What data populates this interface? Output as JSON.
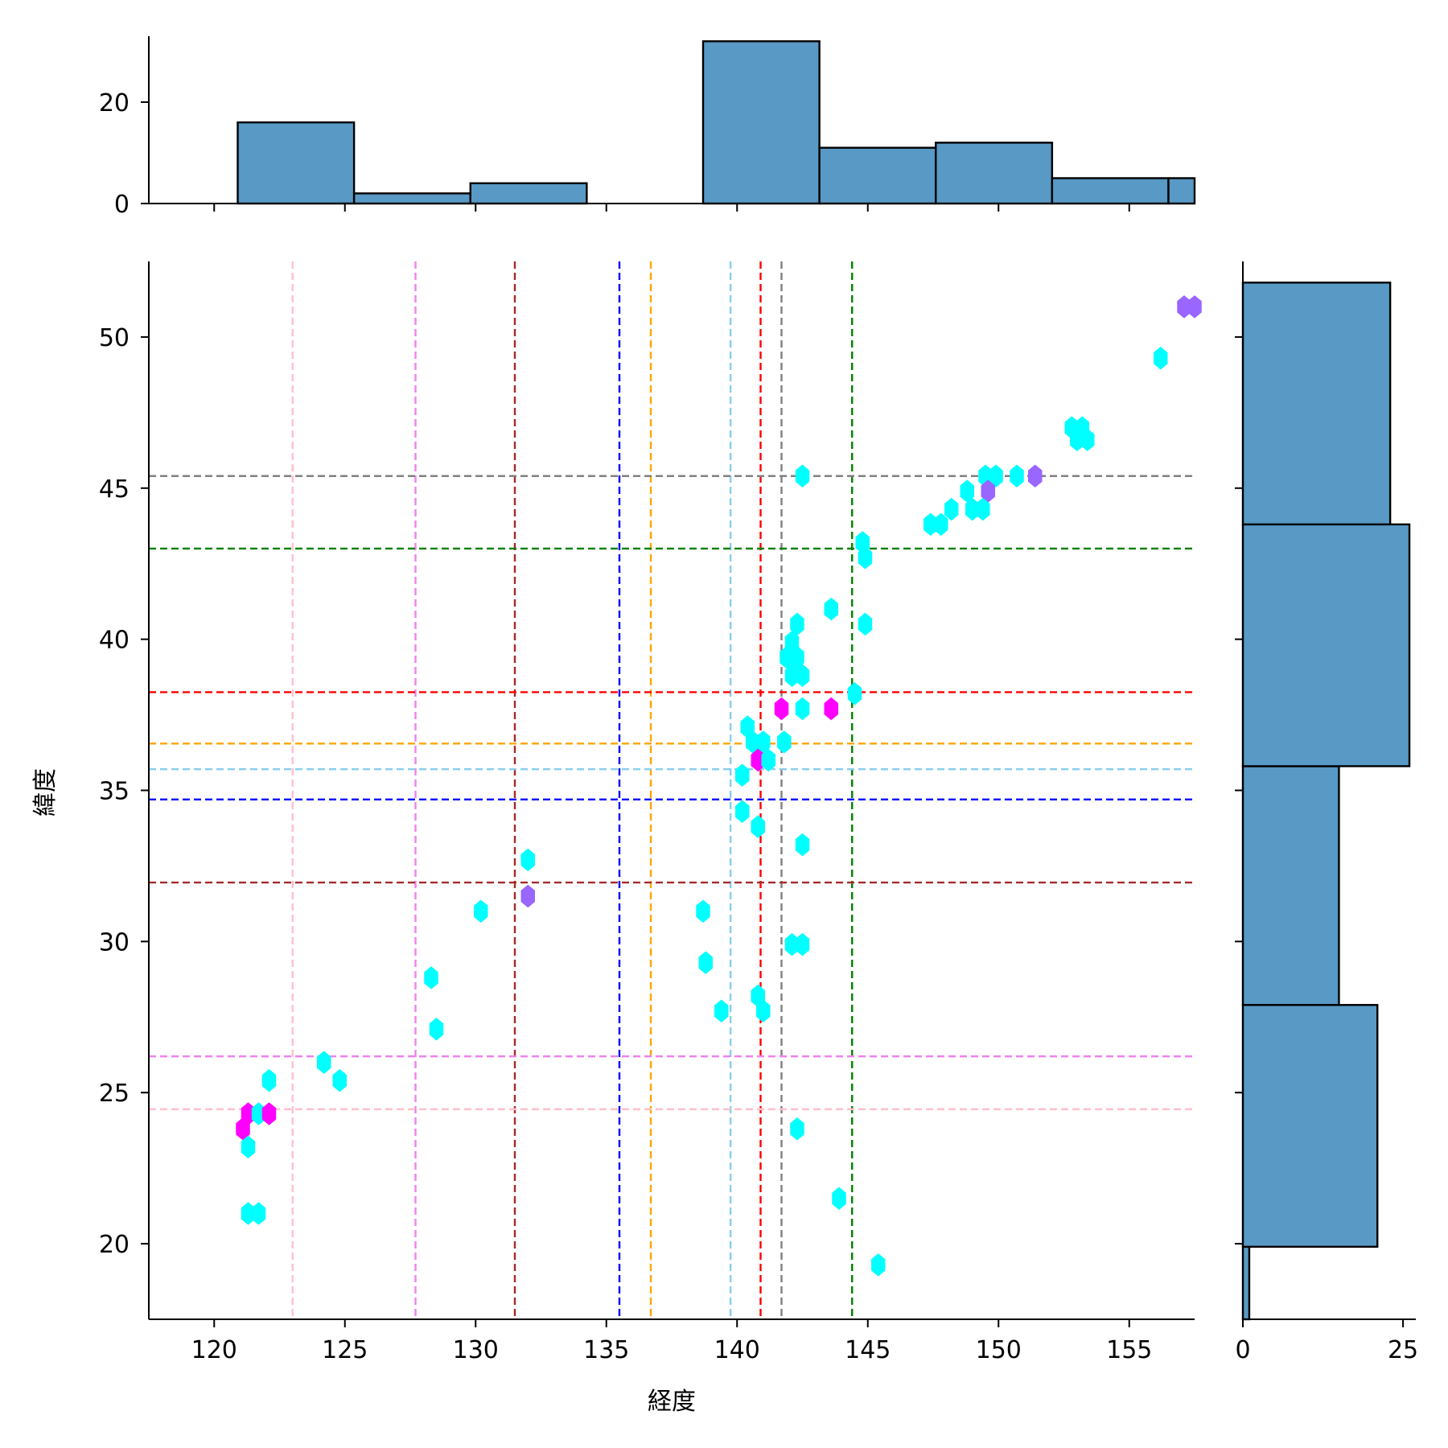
{
  "chart_data": {
    "type": "hexbin-joint",
    "xlabel": "経度",
    "ylabel": "緯度",
    "xlim": [
      117.5,
      157.5
    ],
    "ylim": [
      17.5,
      52.5
    ],
    "x_ticks": [
      120,
      125,
      130,
      135,
      140,
      145,
      150,
      155
    ],
    "y_ticks": [
      20,
      25,
      30,
      35,
      40,
      45,
      50
    ],
    "marginal_x": {
      "bin_edges": [
        120.9,
        125.35,
        129.8,
        134.25,
        138.7,
        143.15,
        147.6,
        152.05,
        156.5,
        160.95
      ],
      "counts": [
        16,
        2,
        4,
        0,
        32,
        11,
        12,
        5,
        5
      ],
      "ylim": [
        0,
        33
      ],
      "ticks": [
        0,
        20
      ]
    },
    "marginal_y": {
      "bin_edges": [
        17.5,
        19.9,
        27.9,
        35.8,
        43.8,
        51.8
      ],
      "counts": [
        1,
        21,
        15,
        26,
        23
      ],
      "xlim": [
        0,
        27
      ],
      "ticks": [
        0,
        25
      ]
    },
    "vlines": [
      {
        "x": 123.0,
        "color": "#ffc0cb"
      },
      {
        "x": 127.7,
        "color": "#ee82ee"
      },
      {
        "x": 131.5,
        "color": "#a52a2a"
      },
      {
        "x": 135.5,
        "color": "#0000ff"
      },
      {
        "x": 136.7,
        "color": "#ffa500"
      },
      {
        "x": 139.75,
        "color": "#87ceeb"
      },
      {
        "x": 140.9,
        "color": "#ff0000"
      },
      {
        "x": 141.7,
        "color": "#808080"
      },
      {
        "x": 144.4,
        "color": "#008000"
      }
    ],
    "hlines": [
      {
        "y": 45.4,
        "color": "#808080"
      },
      {
        "y": 43.0,
        "color": "#008000"
      },
      {
        "y": 38.25,
        "color": "#ff0000"
      },
      {
        "y": 36.55,
        "color": "#ffa500"
      },
      {
        "y": 35.7,
        "color": "#87ceeb"
      },
      {
        "y": 34.7,
        "color": "#0000ff"
      },
      {
        "y": 31.95,
        "color": "#a52a2a"
      },
      {
        "y": 26.2,
        "color": "#ee82ee"
      },
      {
        "y": 24.45,
        "color": "#ffc0cb"
      }
    ],
    "hex_points": [
      {
        "x": 157.1,
        "y": 51.0,
        "c": "#9966ff"
      },
      {
        "x": 157.5,
        "y": 51.0,
        "c": "#9966ff"
      },
      {
        "x": 156.2,
        "y": 49.3,
        "c": "#00ffff"
      },
      {
        "x": 152.8,
        "y": 47.0,
        "c": "#00ffff"
      },
      {
        "x": 153.2,
        "y": 47.0,
        "c": "#00ffff"
      },
      {
        "x": 153.0,
        "y": 46.6,
        "c": "#00ffff"
      },
      {
        "x": 153.4,
        "y": 46.6,
        "c": "#00ffff"
      },
      {
        "x": 142.5,
        "y": 45.4,
        "c": "#00ffff"
      },
      {
        "x": 149.5,
        "y": 45.4,
        "c": "#00ffff"
      },
      {
        "x": 149.9,
        "y": 45.4,
        "c": "#00ffff"
      },
      {
        "x": 150.7,
        "y": 45.4,
        "c": "#00ffff"
      },
      {
        "x": 151.4,
        "y": 45.4,
        "c": "#9966ff"
      },
      {
        "x": 149.6,
        "y": 44.9,
        "c": "#9966ff"
      },
      {
        "x": 148.8,
        "y": 44.9,
        "c": "#00ffff"
      },
      {
        "x": 148.2,
        "y": 44.3,
        "c": "#00ffff"
      },
      {
        "x": 149.0,
        "y": 44.3,
        "c": "#00ffff"
      },
      {
        "x": 149.4,
        "y": 44.3,
        "c": "#00ffff"
      },
      {
        "x": 147.8,
        "y": 43.8,
        "c": "#00ffff"
      },
      {
        "x": 147.4,
        "y": 43.8,
        "c": "#00ffff"
      },
      {
        "x": 144.8,
        "y": 43.2,
        "c": "#00ffff"
      },
      {
        "x": 144.9,
        "y": 42.7,
        "c": "#00ffff"
      },
      {
        "x": 143.6,
        "y": 41.0,
        "c": "#00ffff"
      },
      {
        "x": 144.9,
        "y": 40.5,
        "c": "#00ffff"
      },
      {
        "x": 142.3,
        "y": 40.5,
        "c": "#00ffff"
      },
      {
        "x": 142.1,
        "y": 39.9,
        "c": "#00ffff"
      },
      {
        "x": 141.9,
        "y": 39.4,
        "c": "#00ffff"
      },
      {
        "x": 142.3,
        "y": 39.4,
        "c": "#00ffff"
      },
      {
        "x": 142.1,
        "y": 38.8,
        "c": "#00ffff"
      },
      {
        "x": 142.5,
        "y": 38.8,
        "c": "#00ffff"
      },
      {
        "x": 144.5,
        "y": 38.2,
        "c": "#00ffff"
      },
      {
        "x": 141.7,
        "y": 37.7,
        "c": "#ff00ff"
      },
      {
        "x": 142.5,
        "y": 37.7,
        "c": "#00ffff"
      },
      {
        "x": 143.6,
        "y": 37.7,
        "c": "#ff00ff"
      },
      {
        "x": 140.4,
        "y": 37.1,
        "c": "#00ffff"
      },
      {
        "x": 140.6,
        "y": 36.6,
        "c": "#00ffff"
      },
      {
        "x": 141.0,
        "y": 36.6,
        "c": "#00ffff"
      },
      {
        "x": 141.8,
        "y": 36.6,
        "c": "#00ffff"
      },
      {
        "x": 140.8,
        "y": 36.0,
        "c": "#ff00ff"
      },
      {
        "x": 141.2,
        "y": 36.0,
        "c": "#00ffff"
      },
      {
        "x": 140.2,
        "y": 35.5,
        "c": "#00ffff"
      },
      {
        "x": 140.2,
        "y": 34.3,
        "c": "#00ffff"
      },
      {
        "x": 140.8,
        "y": 33.8,
        "c": "#00ffff"
      },
      {
        "x": 142.5,
        "y": 33.2,
        "c": "#00ffff"
      },
      {
        "x": 132.0,
        "y": 32.7,
        "c": "#00ffff"
      },
      {
        "x": 132.0,
        "y": 31.5,
        "c": "#9966ff"
      },
      {
        "x": 130.2,
        "y": 31.0,
        "c": "#00ffff"
      },
      {
        "x": 138.7,
        "y": 31.0,
        "c": "#00ffff"
      },
      {
        "x": 142.1,
        "y": 29.9,
        "c": "#00ffff"
      },
      {
        "x": 142.5,
        "y": 29.9,
        "c": "#00ffff"
      },
      {
        "x": 138.8,
        "y": 29.3,
        "c": "#00ffff"
      },
      {
        "x": 128.3,
        "y": 28.8,
        "c": "#00ffff"
      },
      {
        "x": 140.8,
        "y": 28.2,
        "c": "#00ffff"
      },
      {
        "x": 141.0,
        "y": 27.7,
        "c": "#00ffff"
      },
      {
        "x": 139.4,
        "y": 27.7,
        "c": "#00ffff"
      },
      {
        "x": 128.5,
        "y": 27.1,
        "c": "#00ffff"
      },
      {
        "x": 124.2,
        "y": 26.0,
        "c": "#00ffff"
      },
      {
        "x": 124.8,
        "y": 25.4,
        "c": "#00ffff"
      },
      {
        "x": 122.1,
        "y": 25.4,
        "c": "#00ffff"
      },
      {
        "x": 121.3,
        "y": 24.3,
        "c": "#ff00ff"
      },
      {
        "x": 121.7,
        "y": 24.3,
        "c": "#00ffff"
      },
      {
        "x": 122.1,
        "y": 24.3,
        "c": "#ff00ff"
      },
      {
        "x": 121.1,
        "y": 23.8,
        "c": "#ff00ff"
      },
      {
        "x": 142.3,
        "y": 23.8,
        "c": "#00ffff"
      },
      {
        "x": 121.3,
        "y": 23.2,
        "c": "#00ffff"
      },
      {
        "x": 143.9,
        "y": 21.5,
        "c": "#00ffff"
      },
      {
        "x": 121.3,
        "y": 21.0,
        "c": "#00ffff"
      },
      {
        "x": 121.7,
        "y": 21.0,
        "c": "#00ffff"
      },
      {
        "x": 145.4,
        "y": 19.3,
        "c": "#00ffff"
      }
    ]
  }
}
